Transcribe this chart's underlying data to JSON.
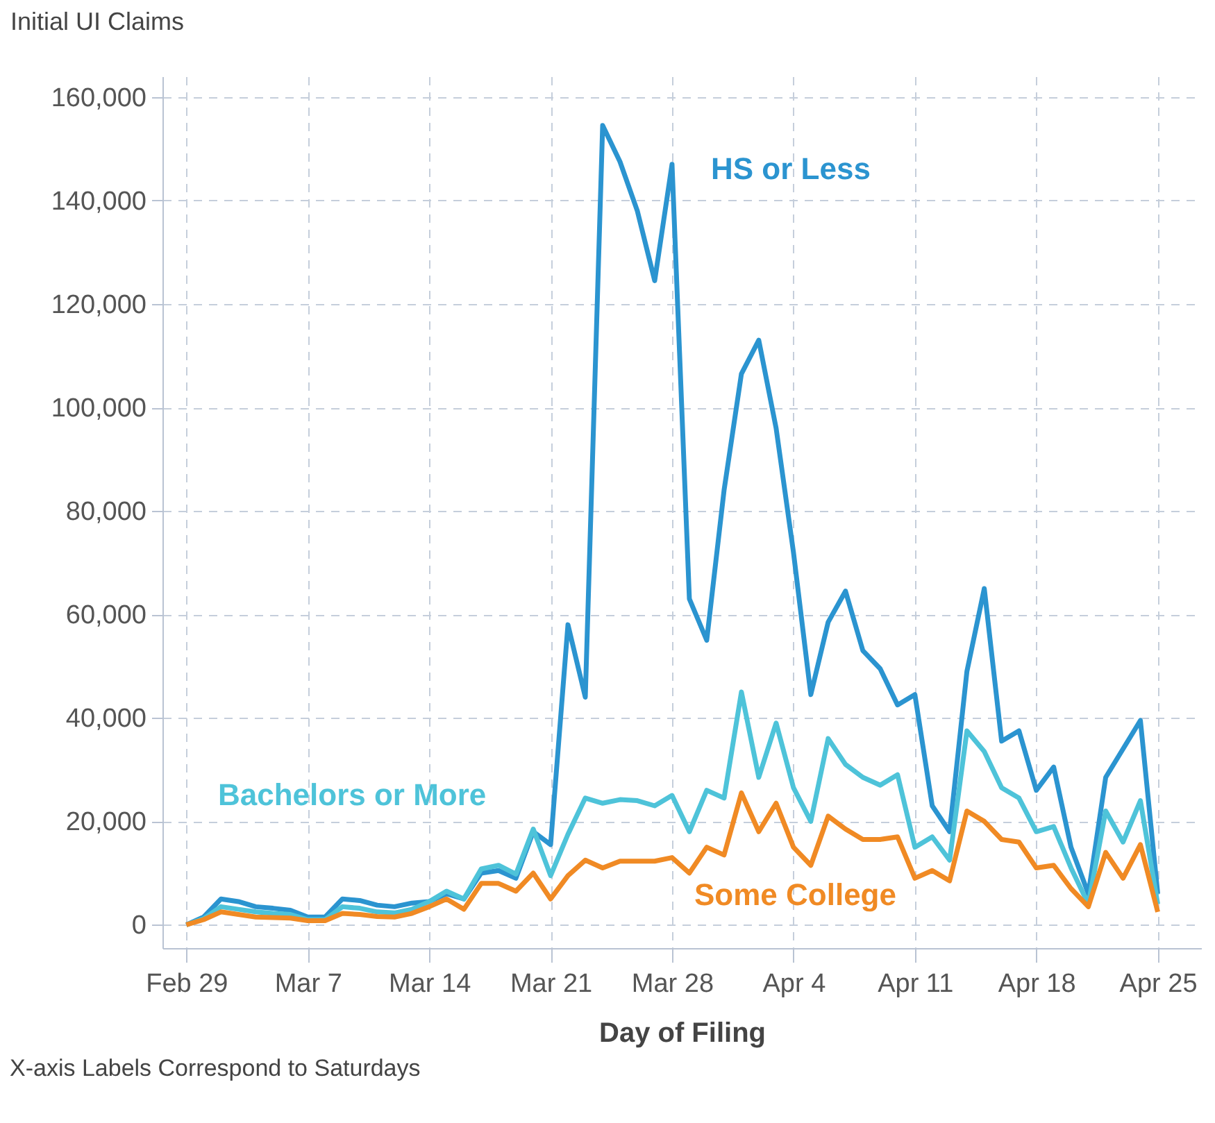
{
  "chart_data": {
    "type": "line",
    "xlabel": "Day of Filing",
    "ylabel": "Initial UI Claims",
    "annotations": [
      "X-axis Labels Correspond to Saturdays"
    ],
    "x": [
      "--02-29",
      "--03-01",
      "--03-02",
      "--03-03",
      "--03-04",
      "--03-05",
      "--03-06",
      "--03-07",
      "--03-08",
      "--03-09",
      "--03-10",
      "--03-11",
      "--03-12",
      "--03-13",
      "--03-14",
      "--03-15",
      "--03-16",
      "--03-17",
      "--03-18",
      "--03-19",
      "--03-20",
      "--03-21",
      "--03-22",
      "--03-23",
      "--03-24",
      "--03-25",
      "--03-26",
      "--03-27",
      "--03-28",
      "--03-29",
      "--03-30",
      "--03-31",
      "--04-01",
      "--04-02",
      "--04-03",
      "--04-04",
      "--04-05",
      "--04-06",
      "--04-07",
      "--04-08",
      "--04-09",
      "--04-10",
      "--04-11",
      "--04-12",
      "--04-13",
      "--04-14",
      "--04-15",
      "--04-16",
      "--04-17",
      "--04-18",
      "--04-19",
      "--04-20",
      "--04-21",
      "--04-22",
      "--04-23",
      "--04-24",
      "--04-25"
    ],
    "series": [
      {
        "name": "HS or Less",
        "color": "#2b94d0",
        "values": [
          0,
          1500,
          5000,
          4500,
          3500,
          3200,
          2800,
          1500,
          1500,
          5000,
          4700,
          3800,
          3500,
          4200,
          4500,
          6000,
          5000,
          10000,
          10500,
          9000,
          18000,
          15500,
          58000,
          44000,
          154500,
          147500,
          138000,
          124500,
          147000,
          63000,
          55000,
          84000,
          106500,
          113000,
          96000,
          72000,
          44500,
          58500,
          64500,
          53000,
          49500,
          42500,
          44500,
          23000,
          18000,
          49000,
          65000,
          35500,
          37500,
          26000,
          30500,
          15000,
          6000,
          28500,
          34000,
          39500,
          6000
        ]
      },
      {
        "name": "Bachelors or More",
        "color": "#4ec3d9",
        "values": [
          0,
          1200,
          3500,
          3000,
          2500,
          2200,
          2000,
          1000,
          1000,
          3500,
          3200,
          2500,
          2300,
          3000,
          4500,
          6500,
          5000,
          10800,
          11500,
          9800,
          18500,
          9500,
          17500,
          24500,
          23500,
          24200,
          24000,
          23000,
          25000,
          18000,
          26000,
          24500,
          45000,
          28500,
          39000,
          26500,
          20000,
          36000,
          31000,
          28500,
          27000,
          29000,
          15000,
          17000,
          12500,
          37500,
          33500,
          26500,
          24500,
          18000,
          19000,
          11000,
          4000,
          22000,
          16000,
          24000,
          4000
        ]
      },
      {
        "name": "Some College",
        "color": "#f08a24",
        "values": [
          0,
          1000,
          2500,
          2000,
          1500,
          1400,
          1300,
          800,
          800,
          2200,
          2000,
          1600,
          1500,
          2200,
          3500,
          5000,
          3000,
          8000,
          8000,
          6500,
          10000,
          5000,
          9500,
          12500,
          11000,
          12300,
          12300,
          12300,
          13000,
          10000,
          15000,
          13500,
          25500,
          18000,
          23500,
          15000,
          11500,
          21000,
          18500,
          16500,
          16500,
          17000,
          9000,
          10500,
          8500,
          22000,
          20000,
          16500,
          16000,
          11000,
          11500,
          7000,
          3500,
          14000,
          9000,
          15500,
          2500
        ]
      }
    ],
    "xlim": [
      "--02-27T15:00",
      "--04-27T12:00"
    ],
    "xticks": [
      {
        "value": "--02-29",
        "label": "Feb 29"
      },
      {
        "value": "--03-07",
        "label": "Mar 7"
      },
      {
        "value": "--03-14",
        "label": "Mar 14"
      },
      {
        "value": "--03-21",
        "label": "Mar 21"
      },
      {
        "value": "--03-28",
        "label": "Mar 28"
      },
      {
        "value": "--04-04",
        "label": "Apr 4"
      },
      {
        "value": "--04-11",
        "label": "Apr 11"
      },
      {
        "value": "--04-18",
        "label": "Apr 18"
      },
      {
        "value": "--04-25",
        "label": "Apr 25"
      }
    ],
    "ylim": [
      -4500,
      164000
    ],
    "yticks": [
      {
        "value": 0,
        "label": "0"
      },
      {
        "value": 20000,
        "label": "20,000"
      },
      {
        "value": 40000,
        "label": "40,000"
      },
      {
        "value": 60000,
        "label": "60,000"
      },
      {
        "value": 80000,
        "label": "80,000"
      },
      {
        "value": 100000,
        "label": "100,000"
      },
      {
        "value": 120000,
        "label": "120,000"
      },
      {
        "value": 140000,
        "label": "140,000"
      },
      {
        "value": 160000,
        "label": "160,000"
      }
    ],
    "grid": true,
    "legend": false,
    "line_style": "solid",
    "marker": "none"
  }
}
